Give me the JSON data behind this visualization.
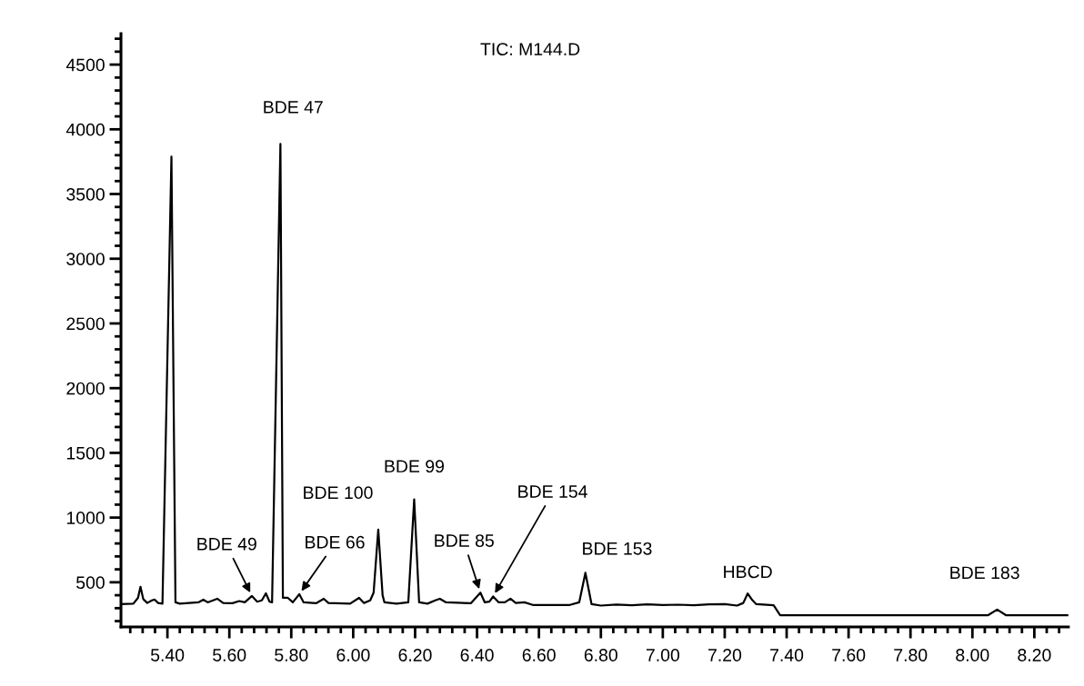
{
  "chart_data": {
    "type": "line",
    "title": "TIC: M144.D",
    "series": [
      {
        "color": "#000000",
        "x": [
          5.25,
          5.29,
          5.305,
          5.313,
          5.322,
          5.335,
          5.35,
          5.359,
          5.37,
          5.384,
          5.413,
          5.426,
          5.44,
          5.47,
          5.5,
          5.516,
          5.53,
          5.561,
          5.58,
          5.61,
          5.632,
          5.65,
          5.673,
          5.69,
          5.705,
          5.718,
          5.73,
          5.738,
          5.765,
          5.773,
          5.789,
          5.805,
          5.826,
          5.84,
          5.88,
          5.905,
          5.92,
          5.99,
          6.019,
          6.035,
          6.055,
          6.066,
          6.081,
          6.095,
          6.101,
          6.14,
          6.178,
          6.197,
          6.213,
          6.24,
          6.265,
          6.28,
          6.3,
          6.38,
          6.411,
          6.425,
          6.44,
          6.452,
          6.47,
          6.49,
          6.508,
          6.525,
          6.553,
          6.58,
          6.7,
          6.73,
          6.75,
          6.77,
          6.8,
          6.85,
          6.9,
          6.95,
          7.0,
          7.05,
          7.1,
          7.15,
          7.2,
          7.24,
          7.26,
          7.274,
          7.29,
          7.302,
          7.358,
          7.379,
          7.6,
          8.051,
          8.08,
          8.108,
          8.307
        ],
        "values": [
          331,
          335,
          380,
          465,
          370,
          340,
          360,
          366,
          340,
          335,
          3789,
          345,
          335,
          340,
          345,
          366,
          345,
          373,
          340,
          338,
          355,
          345,
          394,
          350,
          360,
          415,
          350,
          345,
          3887,
          380,
          380,
          345,
          408,
          345,
          338,
          373,
          340,
          335,
          380,
          340,
          360,
          420,
          908,
          400,
          345,
          335,
          345,
          1141,
          345,
          335,
          360,
          373,
          345,
          338,
          420,
          345,
          350,
          390,
          345,
          345,
          373,
          340,
          345,
          325,
          325,
          345,
          573,
          331,
          320,
          328,
          322,
          330,
          325,
          327,
          322,
          330,
          332,
          320,
          340,
          413,
          360,
          331,
          322,
          246,
          246,
          246,
          289,
          246,
          246
        ]
      }
    ],
    "xlim": [
      5.25,
      8.31
    ],
    "ylim": [
      155,
      4740
    ],
    "xticks": [
      {
        "value": 5.4,
        "label": "5.40"
      },
      {
        "value": 5.6,
        "label": "5.60"
      },
      {
        "value": 5.8,
        "label": "5.80"
      },
      {
        "value": 6.0,
        "label": "6.00"
      },
      {
        "value": 6.2,
        "label": "6.20"
      },
      {
        "value": 6.4,
        "label": "6.40"
      },
      {
        "value": 6.6,
        "label": "6.60"
      },
      {
        "value": 6.8,
        "label": "6.80"
      },
      {
        "value": 7.0,
        "label": "7.00"
      },
      {
        "value": 7.2,
        "label": "7.20"
      },
      {
        "value": 7.4,
        "label": "7.40"
      },
      {
        "value": 7.6,
        "label": "7.60"
      },
      {
        "value": 7.8,
        "label": "7.80"
      },
      {
        "value": 8.0,
        "label": "8.00"
      },
      {
        "value": 8.2,
        "label": "8.20"
      }
    ],
    "yticks": [
      500,
      1000,
      1500,
      2000,
      2500,
      3000,
      3500,
      4000,
      4500
    ],
    "annotations": [
      {
        "text": "BDE 47",
        "x": 5.765,
        "y": 3887
      },
      {
        "text": "BDE 49",
        "x": 5.673,
        "y": 394
      },
      {
        "text": "BDE 66",
        "x": 5.826,
        "y": 408
      },
      {
        "text": "BDE 100",
        "x": 6.081,
        "y": 908
      },
      {
        "text": "BDE 99",
        "x": 6.197,
        "y": 1141
      },
      {
        "text": "BDE 85",
        "x": 6.411,
        "y": 420
      },
      {
        "text": "BDE 154",
        "x": 6.452,
        "y": 390
      },
      {
        "text": "BDE 153",
        "x": 6.75,
        "y": 573
      },
      {
        "text": "HBCD",
        "x": 7.274,
        "y": 413
      },
      {
        "text": "BDE 183",
        "x": 8.08,
        "y": 289
      }
    ]
  }
}
